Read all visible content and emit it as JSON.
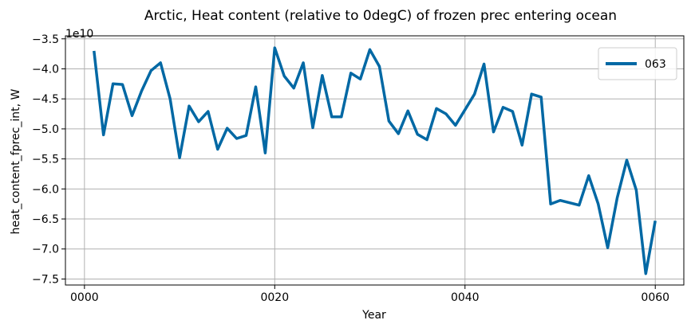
{
  "chart_data": {
    "type": "line",
    "title": "Arctic, Heat content (relative to 0degC) of frozen prec entering ocean",
    "xlabel": "Year",
    "ylabel": "heat_content_fprec_int, W",
    "offset_label": "1e10",
    "xlim": [
      -2,
      63
    ],
    "ylim": [
      -7.6,
      -3.45
    ],
    "x_ticks": [
      {
        "value": 0,
        "label": "0000"
      },
      {
        "value": 20,
        "label": "0020"
      },
      {
        "value": 40,
        "label": "0040"
      },
      {
        "value": 60,
        "label": "0060"
      }
    ],
    "y_ticks": [
      {
        "value": -3.5,
        "label": "−3.5"
      },
      {
        "value": -4.0,
        "label": "−4.0"
      },
      {
        "value": -4.5,
        "label": "−4.5"
      },
      {
        "value": -5.0,
        "label": "−5.0"
      },
      {
        "value": -5.5,
        "label": "−5.5"
      },
      {
        "value": -6.0,
        "label": "−6.0"
      },
      {
        "value": -6.5,
        "label": "−6.5"
      },
      {
        "value": -7.0,
        "label": "−7.0"
      },
      {
        "value": -7.5,
        "label": "−7.5"
      }
    ],
    "grid": true,
    "legend_position": "top-right",
    "series": [
      {
        "name": "063",
        "color": "#0068a4",
        "x": [
          1,
          2,
          3,
          4,
          5,
          6,
          7,
          8,
          9,
          10,
          11,
          12,
          13,
          14,
          15,
          16,
          17,
          18,
          19,
          20,
          21,
          22,
          23,
          24,
          25,
          26,
          27,
          28,
          29,
          30,
          31,
          32,
          33,
          34,
          35,
          36,
          37,
          38,
          39,
          40,
          41,
          42,
          43,
          44,
          45,
          46,
          47,
          48,
          49,
          50,
          51,
          52,
          53,
          54,
          55,
          56,
          57,
          58,
          59,
          60
        ],
        "values": [
          -3.7,
          -5.1,
          -4.25,
          -4.26,
          -4.78,
          -4.37,
          -4.03,
          -3.9,
          -4.5,
          -5.48,
          -4.62,
          -4.88,
          -4.71,
          -5.34,
          -4.99,
          -5.16,
          -5.11,
          -4.3,
          -5.4,
          -3.65,
          -4.12,
          -4.32,
          -3.9,
          -4.98,
          -4.11,
          -4.8,
          -4.8,
          -4.07,
          -4.17,
          -3.68,
          -3.96,
          -4.87,
          -5.08,
          -4.7,
          -5.09,
          -5.18,
          -4.66,
          -4.75,
          -4.94,
          -4.68,
          -4.42,
          -3.92,
          -5.05,
          -4.64,
          -4.71,
          -5.27,
          -4.42,
          -4.47,
          -6.25,
          -6.19,
          -6.23,
          -6.27,
          -5.78,
          -6.25,
          -6.98,
          -6.15,
          -5.52,
          -6.02,
          -7.41,
          -6.53
        ]
      }
    ]
  }
}
